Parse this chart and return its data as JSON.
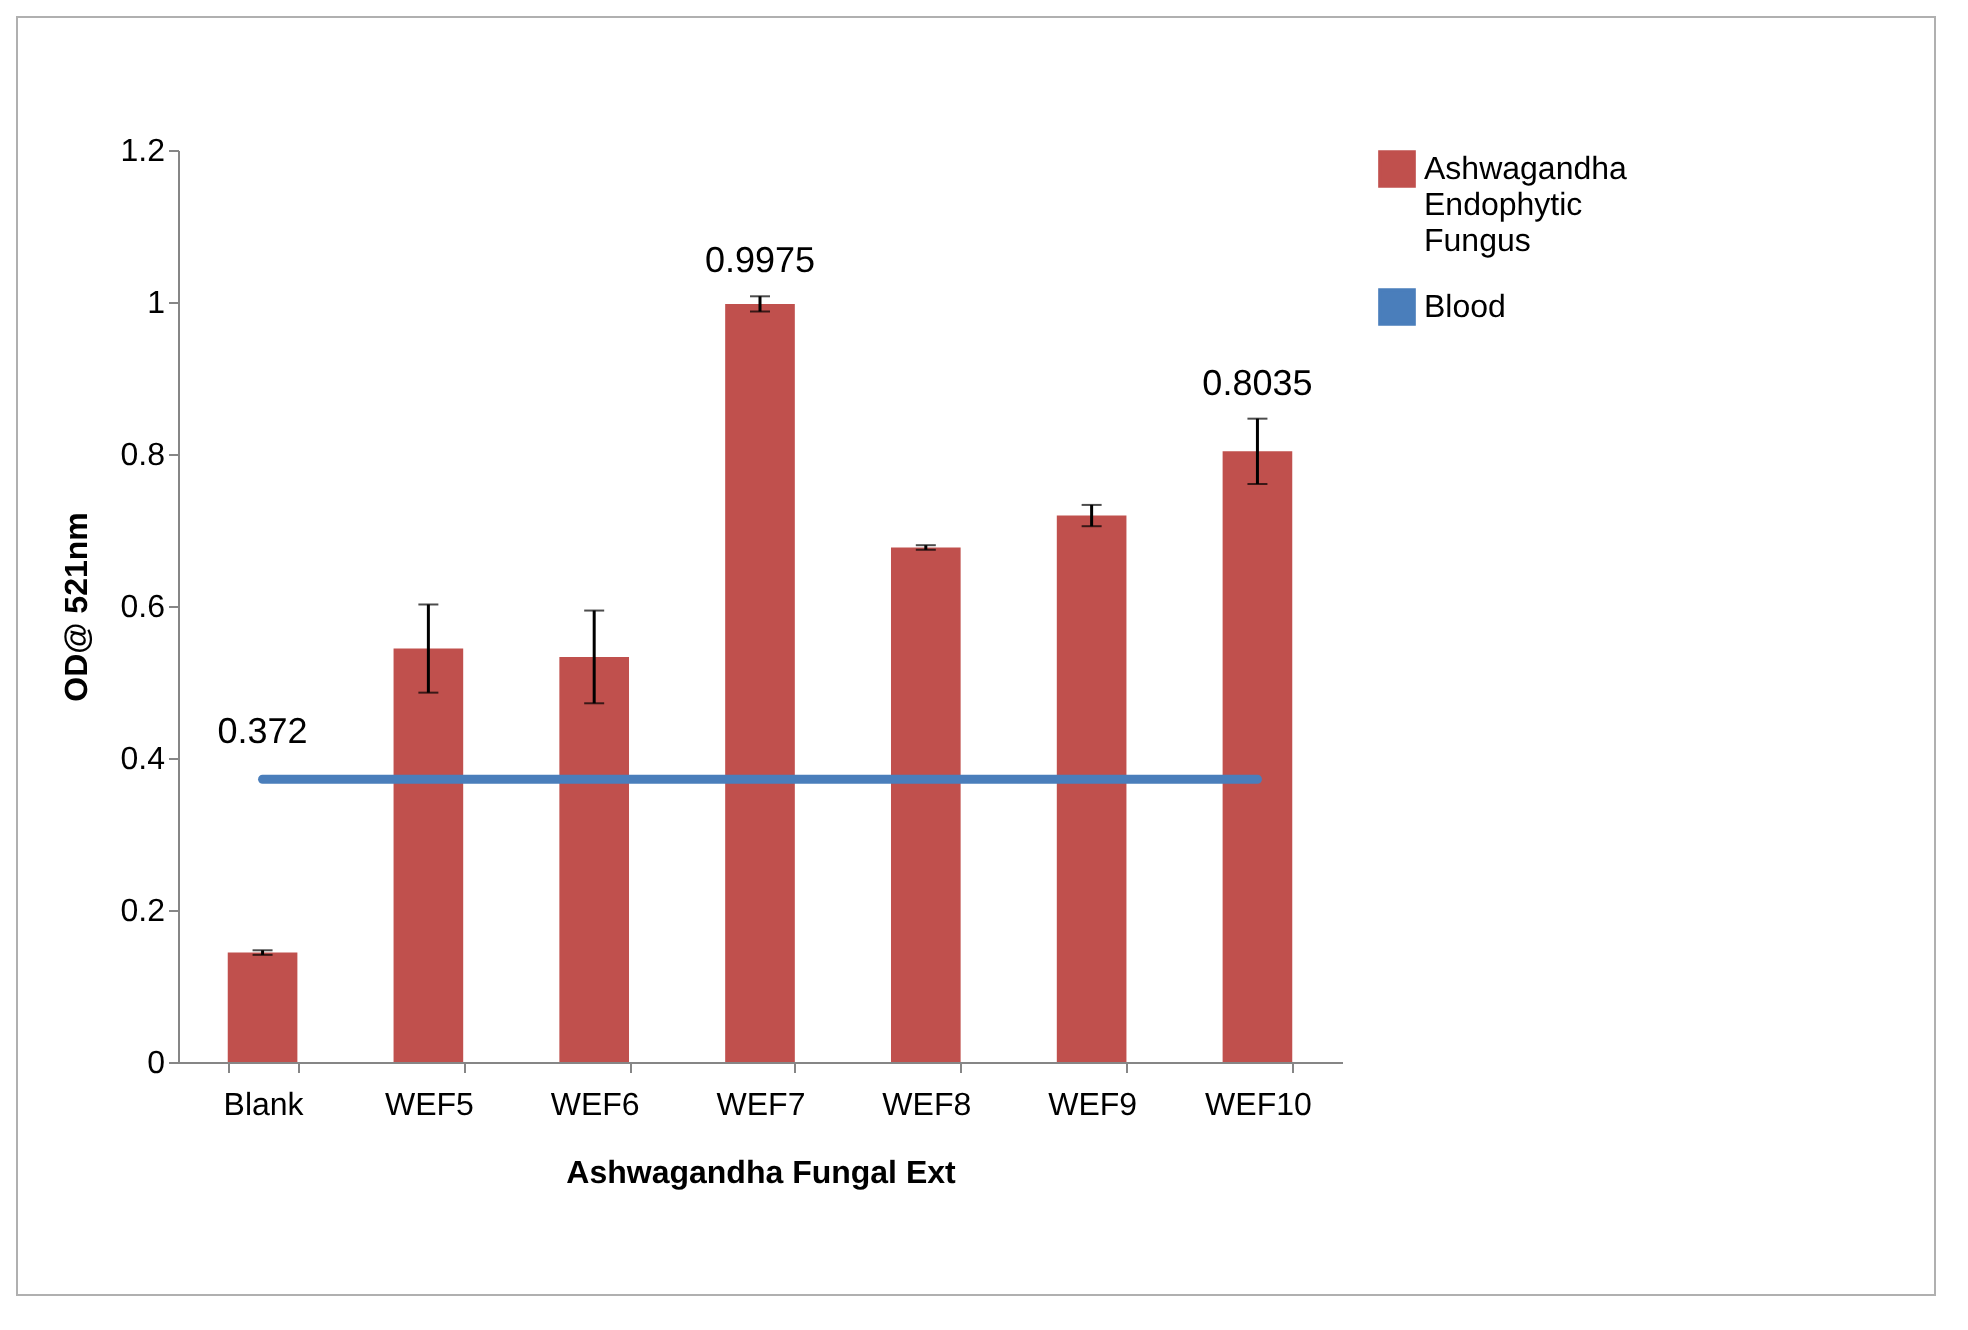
{
  "chart_data": {
    "type": "bar",
    "xlabel": "Ashwagandha  Fungal Ext",
    "ylabel": "OD@ 521nm",
    "categories": [
      "Blank",
      "WEF5",
      "WEF6",
      "WEF7",
      "WEF8",
      "WEF9",
      "WEF10"
    ],
    "series": [
      {
        "name": "Ashwagandha Endophytic Fungus",
        "color": "#c0504d",
        "values": [
          0.144,
          0.544,
          0.533,
          0.9975,
          0.677,
          0.719,
          0.8035
        ],
        "errors": [
          0.003,
          0.058,
          0.061,
          0.01,
          0.003,
          0.014,
          0.043
        ],
        "value_labels": [
          null,
          null,
          null,
          "0.9975",
          null,
          null,
          "0.8035"
        ]
      },
      {
        "name": "Blood",
        "type": "line",
        "color": "#4a7ebb",
        "values": [
          0.372,
          0.372,
          0.372,
          0.372,
          0.372,
          0.372,
          0.372
        ],
        "value_labels": [
          "0.372",
          null,
          null,
          null,
          null,
          null,
          null
        ]
      }
    ],
    "ylim": [
      0,
      1.2
    ],
    "yticks": [
      0,
      0.2,
      0.4,
      0.6,
      0.8,
      1,
      1.2
    ],
    "grid": false,
    "legend": "right",
    "marker": "none",
    "line_style": "solid"
  }
}
